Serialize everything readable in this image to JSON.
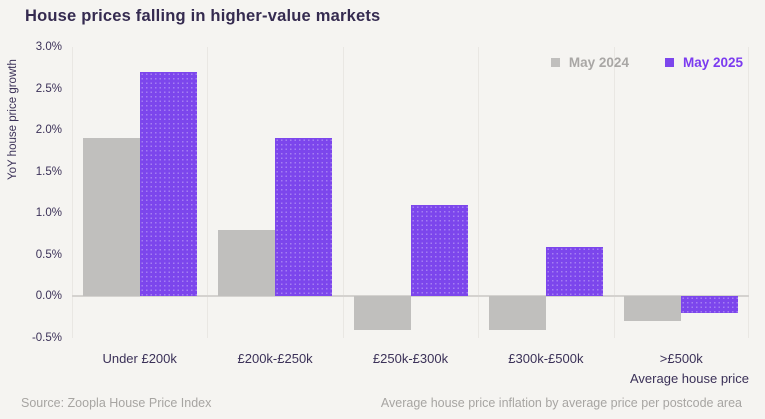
{
  "title": "House prices falling in higher-value markets",
  "legend": {
    "items": [
      {
        "label": "May 2024",
        "color": "#C0BFBD"
      },
      {
        "label": "May 2025",
        "color": "#7C46EC"
      }
    ]
  },
  "chart_data": {
    "type": "bar",
    "title": "House prices falling in higher-value markets",
    "categories": [
      "Under £200k",
      "£200k-£250k",
      "£250k-£300k",
      "£300k-£500k",
      ">£500k"
    ],
    "series": [
      {
        "name": "May 2024",
        "color": "#C0BFBD",
        "values": [
          1.9,
          0.8,
          -0.4,
          -0.4,
          -0.3
        ]
      },
      {
        "name": "May 2025",
        "color": "#7C46EC",
        "values": [
          2.7,
          1.9,
          1.1,
          0.6,
          -0.2
        ]
      }
    ],
    "xlabel": "Average house price",
    "ylabel": "YoY house price growth",
    "ylim": [
      -0.5,
      3.0
    ],
    "yticks": [
      {
        "value": 3.0,
        "label": "3.0%"
      },
      {
        "value": 2.5,
        "label": "2.5%"
      },
      {
        "value": 2.0,
        "label": "2.0%"
      },
      {
        "value": 1.5,
        "label": "1.5%"
      },
      {
        "value": 1.0,
        "label": "1.0%"
      },
      {
        "value": 0.5,
        "label": "0.5%"
      },
      {
        "value": 0.0,
        "label": "0.0%"
      },
      {
        "value": -0.5,
        "label": "-0.5%"
      }
    ],
    "legend_position": "top-right",
    "grid": "vertical-category-separators",
    "unit": "%"
  },
  "footer": {
    "source": "Source: Zoopla House Price Index",
    "note": "Average house price inflation by average price per postcode area"
  },
  "colors": {
    "background": "#F5F4F1",
    "title_text": "#352B50",
    "axis_text": "#3B3158",
    "gray_series": "#C0BFBD",
    "purple_series": "#7C46EC",
    "legend_2024_text": "#A9A7A5",
    "legend_2025_text": "#7B3BF0",
    "separator_line": "#E9E7E3",
    "zero_line": "#D4D2CF",
    "footer_text": "#A7A5A2"
  }
}
